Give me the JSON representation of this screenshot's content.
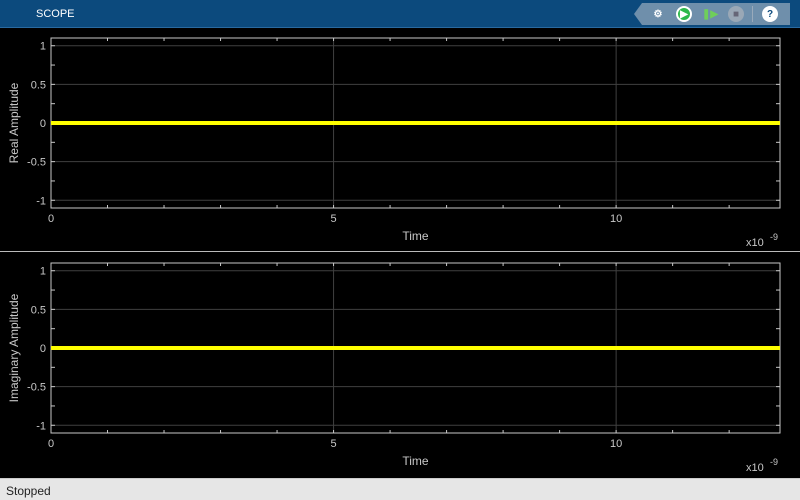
{
  "window": {
    "title": "SCOPE"
  },
  "toolbar": {
    "buttons": [
      {
        "name": "settings-icon",
        "label": "Settings"
      },
      {
        "name": "run-icon",
        "label": "Run"
      },
      {
        "name": "step-forward-icon",
        "label": "Step Forward"
      },
      {
        "name": "stop-icon",
        "label": "Stop"
      },
      {
        "name": "help-icon",
        "label": "?"
      }
    ]
  },
  "status": {
    "text": "Stopped"
  },
  "colors": {
    "line": "#ffff00",
    "background": "#000000",
    "axes": "#c8c8c8",
    "grid": "#404040",
    "titlebar": "#0c4a7d"
  },
  "chart_data": [
    {
      "type": "line",
      "xlabel": "Time",
      "ylabel": "Real Amplitude",
      "x_exponent": "x10",
      "x_exponent_power": "-9",
      "xlim": [
        0,
        12.9
      ],
      "ylim": [
        -1.1,
        1.1
      ],
      "xticks": [
        0,
        5,
        10
      ],
      "yticks": [
        -1,
        -0.5,
        0,
        0.5,
        1
      ],
      "xtick_labels": [
        "0",
        "5",
        "10"
      ],
      "ytick_labels": [
        "-1",
        "-0.5",
        "0",
        "0.5",
        "1"
      ],
      "grid": true,
      "series": [
        {
          "x": [
            0,
            12.9
          ],
          "y": [
            0,
            0
          ],
          "color": "#ffff00"
        }
      ]
    },
    {
      "type": "line",
      "xlabel": "Time",
      "ylabel": "Imaginary Amplitude",
      "x_exponent": "x10",
      "x_exponent_power": "-9",
      "xlim": [
        0,
        12.9
      ],
      "ylim": [
        -1.1,
        1.1
      ],
      "xticks": [
        0,
        5,
        10
      ],
      "yticks": [
        -1,
        -0.5,
        0,
        0.5,
        1
      ],
      "xtick_labels": [
        "0",
        "5",
        "10"
      ],
      "ytick_labels": [
        "-1",
        "-0.5",
        "0",
        "0.5",
        "1"
      ],
      "grid": true,
      "series": [
        {
          "x": [
            0,
            12.9
          ],
          "y": [
            0,
            0
          ],
          "color": "#ffff00"
        }
      ]
    }
  ]
}
